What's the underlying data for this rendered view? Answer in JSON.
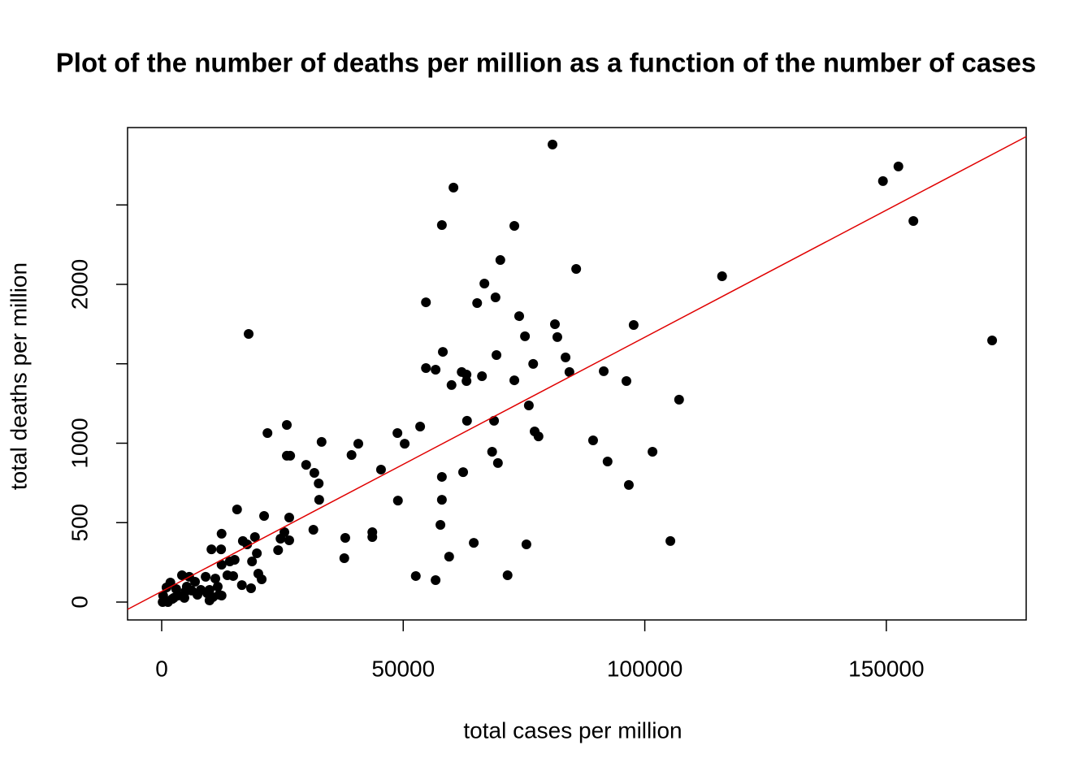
{
  "chart_data": {
    "type": "scatter",
    "title": "Plot of the number of deaths per million as a function of the number of cases",
    "x_label": "total cases per million",
    "y_label": "total deaths per million",
    "color": "#000000",
    "x": [
      80900,
      152500,
      149300,
      60400,
      58000,
      73000,
      155600,
      70100,
      85800,
      116000,
      66800,
      69100,
      54700,
      65300,
      74000,
      81400,
      97700,
      81900,
      75200,
      18000,
      171900,
      58200,
      69300,
      83600,
      76900,
      54700,
      56700,
      62100,
      63100,
      66300,
      84400,
      91500,
      73000,
      96200,
      60000,
      63100,
      107100,
      76000,
      63200,
      68800,
      53500,
      48800,
      77200,
      78000,
      25900,
      21900,
      33100,
      40700,
      50300,
      89300,
      68400,
      101600,
      39300,
      25900,
      26600,
      69600,
      92300,
      29900,
      45400,
      31600,
      62400,
      58000,
      32500,
      48900,
      32600,
      58000,
      96700,
      15600,
      21200,
      26400,
      57700,
      31400,
      25400,
      12400,
      43600,
      43600,
      38000,
      24600,
      26400,
      19300,
      16800,
      17700,
      64600,
      105300,
      75500,
      10300,
      12300,
      24100,
      19700,
      59500,
      37800,
      18700,
      15100,
      14100,
      12400,
      20000,
      20700,
      16600,
      18500,
      52600,
      71600,
      56700,
      13600,
      14800,
      11100,
      9100,
      6900,
      5700,
      4200,
      11600,
      9900,
      8100,
      4900,
      3000,
      1800,
      1000,
      10600,
      9400,
      11900,
      12400,
      7400,
      4700,
      3400,
      2200,
      800,
      200,
      1300,
      9900,
      2500,
      300,
      5200,
      6200
    ],
    "values": [
      2880,
      2742,
      2650,
      2609,
      2373,
      2368,
      2399,
      2153,
      2097,
      2051,
      2005,
      1918,
      1887,
      1882,
      1800,
      1749,
      1744,
      1668,
      1673,
      1688,
      1647,
      1575,
      1555,
      1540,
      1499,
      1473,
      1463,
      1448,
      1432,
      1422,
      1448,
      1453,
      1396,
      1391,
      1366,
      1391,
      1274,
      1238,
      1141,
      1141,
      1105,
      1064,
      1074,
      1043,
      1115,
      1064,
      1008,
      997,
      997,
      1018,
      946,
      946,
      926,
      921,
      921,
      875,
      885,
      864,
      834,
      813,
      818,
      788,
      747,
      639,
      644,
      644,
      737,
      583,
      542,
      532,
      486,
      455,
      440,
      430,
      440,
      409,
      404,
      399,
      389,
      409,
      384,
      363,
      373,
      384,
      363,
      332,
      332,
      327,
      307,
      286,
      276,
      256,
      266,
      256,
      235,
      179,
      143,
      107,
      87,
      164,
      169,
      138,
      169,
      164,
      148,
      159,
      128,
      159,
      169,
      97,
      77,
      77,
      66,
      82,
      123,
      92,
      31,
      56,
      46,
      41,
      46,
      26,
      41,
      20,
      10,
      0,
      0,
      10,
      26,
      41,
      97,
      72
    ],
    "xlim": [
      -7064,
      178950
    ],
    "ylim": [
      -112.5,
      2987
    ],
    "xticks": [
      0,
      50000,
      100000,
      150000
    ],
    "yticks": [
      0,
      500,
      1000,
      {
        "value": 1500,
        "label": null
      },
      2000,
      {
        "value": 2500,
        "label": null
      }
    ],
    "regression_line": {
      "intercept": 67,
      "slope": 0.016,
      "color": "#e00000"
    }
  }
}
